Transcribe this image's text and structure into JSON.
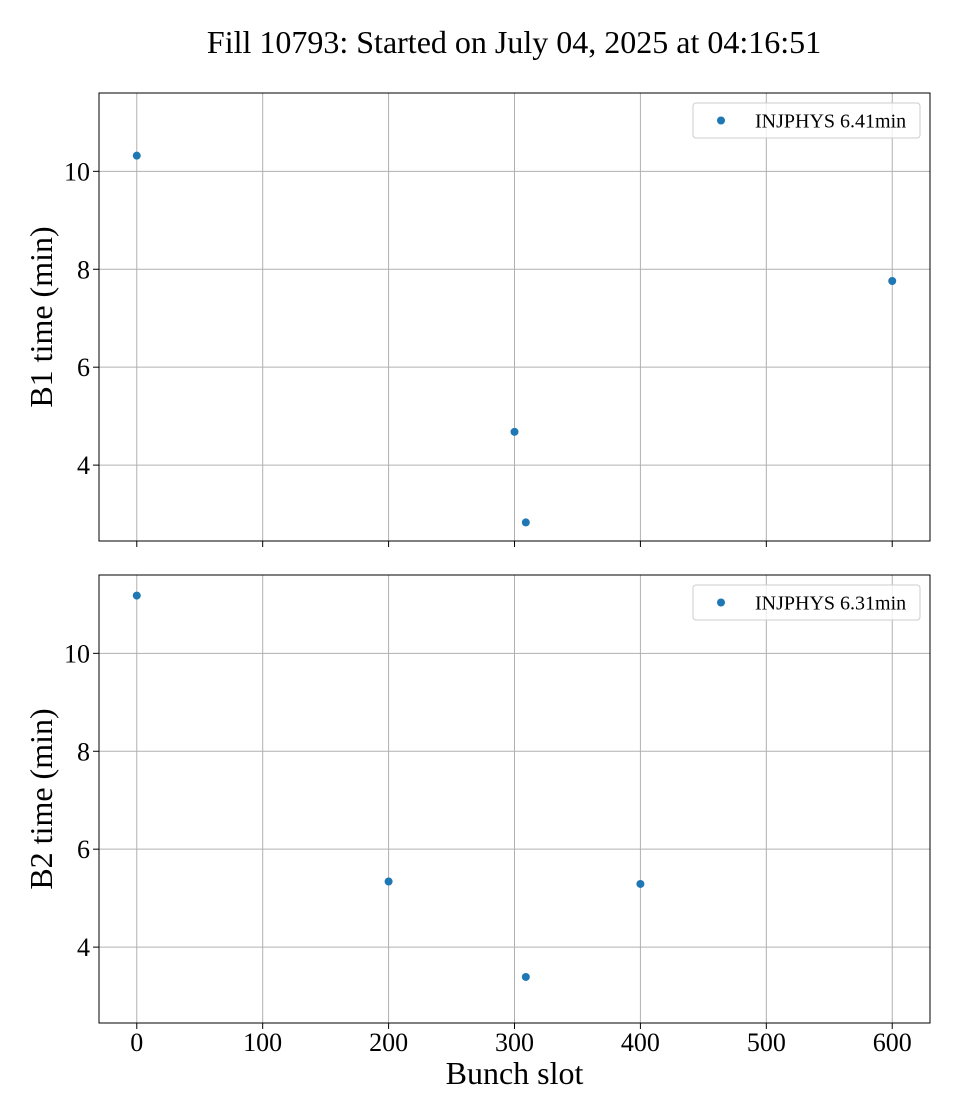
{
  "figure": {
    "title": "Fill 10793: Started on July 04, 2025 at 04:16:51"
  },
  "colors": {
    "marker": "#1f77b4",
    "grid": "#b0b0b0",
    "axes": "#000000",
    "background": "#ffffff"
  },
  "chart_data": [
    {
      "type": "scatter",
      "title": "",
      "xlabel": "",
      "ylabel": "B1 time (min)",
      "xlim": [
        -30,
        630
      ],
      "ylim": [
        2.45,
        11.6
      ],
      "x_ticks": [
        0,
        100,
        200,
        300,
        400,
        500,
        600
      ],
      "x_tick_labels_visible": false,
      "y_ticks": [
        4,
        6,
        8,
        10
      ],
      "grid": true,
      "legend_position": "top-right",
      "series": [
        {
          "name": "INJPHYS 6.41min",
          "x": [
            0,
            300,
            309,
            600
          ],
          "y": [
            10.32,
            4.68,
            2.83,
            7.76
          ]
        }
      ]
    },
    {
      "type": "scatter",
      "title": "",
      "xlabel": "Bunch slot",
      "ylabel": "B2 time (min)",
      "xlim": [
        -30,
        630
      ],
      "ylim": [
        2.45,
        11.6
      ],
      "x_ticks": [
        0,
        100,
        200,
        300,
        400,
        500,
        600
      ],
      "x_tick_labels_visible": true,
      "y_ticks": [
        4,
        6,
        8,
        10
      ],
      "grid": true,
      "legend_position": "top-right",
      "series": [
        {
          "name": "INJPHYS 6.31min",
          "x": [
            0,
            200,
            309,
            400
          ],
          "y": [
            11.18,
            5.34,
            3.39,
            5.29
          ]
        }
      ]
    }
  ]
}
